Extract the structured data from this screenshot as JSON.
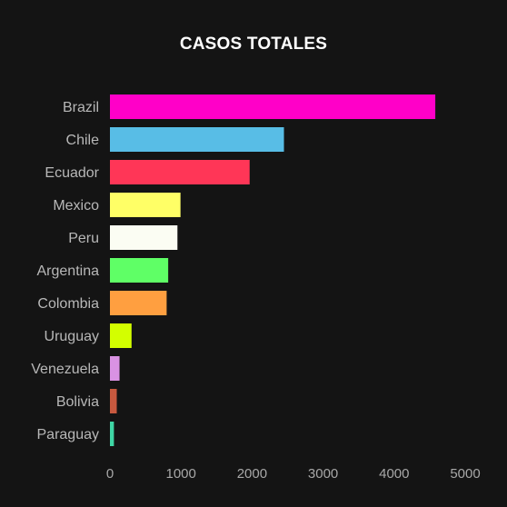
{
  "chart_data": {
    "type": "bar",
    "orientation": "horizontal",
    "title": "CASOS TOTALES",
    "xlabel": "",
    "ylabel": "",
    "categories": [
      "Brazil",
      "Chile",
      "Ecuador",
      "Mexico",
      "Peru",
      "Argentina",
      "Colombia",
      "Uruguay",
      "Venezuela",
      "Bolivia",
      "Paraguay"
    ],
    "values": [
      4579,
      2449,
      1966,
      993,
      950,
      820,
      798,
      304,
      135,
      96,
      56
    ],
    "colors": [
      "#ff00c8",
      "#58bde6",
      "#ff3657",
      "#ffff66",
      "#fbfdf3",
      "#5fff66",
      "#ff9f40",
      "#d3ff00",
      "#d992e3",
      "#c8593f",
      "#3fd6a5"
    ],
    "xlim": [
      0,
      5000
    ],
    "xticks": [
      0,
      1000,
      2000,
      3000,
      4000,
      5000
    ],
    "grid": false,
    "legend": "none",
    "background": "#141414"
  }
}
